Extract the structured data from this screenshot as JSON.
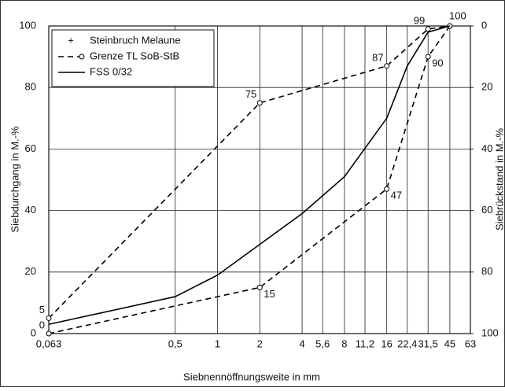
{
  "chart_data": {
    "type": "line",
    "x_label": "Siebnennöffnungsweite in mm",
    "y_label": "Siebdurchgang  in M.-%",
    "y2_label": "Siebrückstand in M.-%",
    "xscale": "log",
    "xlim": [
      0.063,
      63
    ],
    "xticks": [
      {
        "value": 0.063,
        "label": "0,063"
      },
      {
        "value": 0.5,
        "label": "0,5"
      },
      1,
      2,
      4,
      {
        "value": 5.6,
        "label": "5,6"
      },
      8,
      {
        "value": 11.2,
        "label": "11,2"
      },
      16,
      {
        "value": 22.4,
        "label": "22,4"
      },
      {
        "value": 31.5,
        "label": "31,5"
      },
      45,
      63
    ],
    "ylim": [
      0,
      100
    ],
    "yticks": [
      0,
      20,
      40,
      60,
      80,
      100
    ],
    "y2lim": [
      100,
      0
    ],
    "y2ticks": [
      0,
      20,
      40,
      60,
      80,
      100
    ],
    "grid": true,
    "legend": "top-left",
    "series": [
      {
        "name": "Steinbruch Melaune",
        "color": "#000000",
        "marker": "plus",
        "dash": false,
        "x": [],
        "values": []
      },
      {
        "name": "Grenze TL SoB-StB",
        "color": "#000000",
        "marker": "circle",
        "dash": true,
        "x": [
          0.063,
          2,
          16,
          31.5,
          45
        ],
        "values": [
          5,
          75,
          87,
          99,
          100
        ],
        "value_labels": [
          "5",
          "75",
          "87",
          "99",
          "100"
        ]
      },
      {
        "name": "",
        "color": "#000000",
        "marker": "circle",
        "dash": true,
        "x": [
          0.063,
          2,
          16,
          31.5,
          45
        ],
        "values": [
          0,
          15,
          47,
          90,
          100
        ],
        "value_labels": [
          "0",
          "15",
          "47",
          "90",
          null
        ]
      },
      {
        "name": "FSS 0/32",
        "color": "#000000",
        "marker": null,
        "dash": false,
        "x": [
          0.063,
          0.5,
          1,
          2,
          4,
          8,
          16,
          22.4,
          31.5,
          45
        ],
        "values": [
          3,
          12,
          19,
          29,
          39,
          51,
          70,
          87,
          98,
          100
        ]
      }
    ]
  }
}
